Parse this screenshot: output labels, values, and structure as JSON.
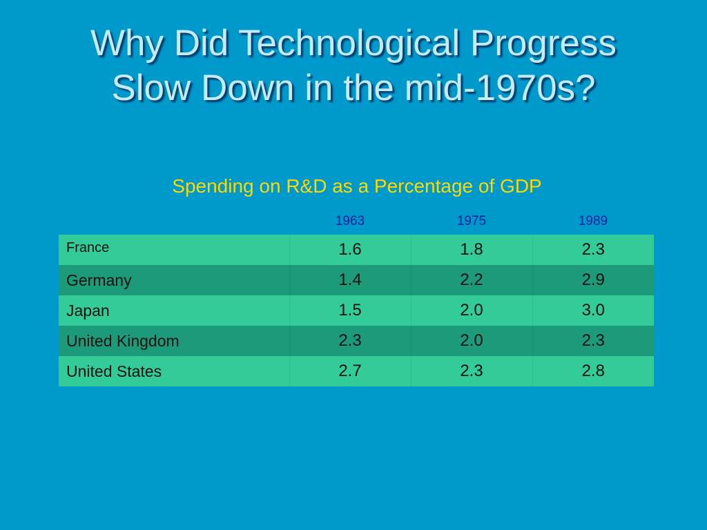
{
  "title": {
    "line1": "Why Did Technological Progress",
    "line2": "Slow Down in the mid-1970s?"
  },
  "subtitle": "Spending on R&D as a Percentage of GDP",
  "table": {
    "columns": [
      "1963",
      "1975",
      "1989"
    ],
    "rows": [
      {
        "country": "France",
        "values": [
          "1.6",
          "1.8",
          "2.3"
        ]
      },
      {
        "country": "Germany",
        "values": [
          "1.4",
          "2.2",
          "2.9"
        ]
      },
      {
        "country": "Japan",
        "values": [
          "1.5",
          "2.0",
          "3.0"
        ]
      },
      {
        "country": "United Kingdom",
        "values": [
          "2.3",
          "2.0",
          "2.3"
        ]
      },
      {
        "country": "United States",
        "values": [
          "2.7",
          "2.3",
          "2.8"
        ]
      }
    ]
  },
  "colors": {
    "background": "#0099cc",
    "title": "#c6ebf8",
    "subtitle": "#ffd800",
    "header_text": "#0a1fa0",
    "row_light": "#33cc99",
    "row_dark": "#1d9a7a"
  }
}
